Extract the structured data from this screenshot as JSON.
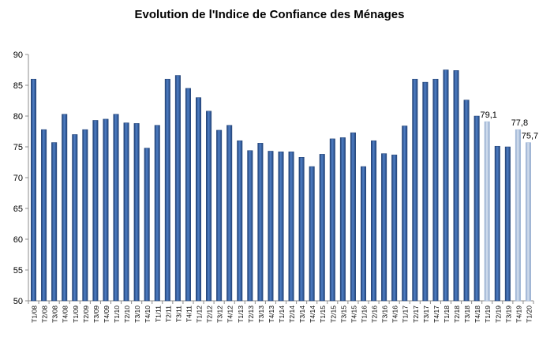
{
  "chart_data": {
    "type": "bar",
    "title": "Evolution de l'Indice de Confiance des Ménages",
    "xlabel": "",
    "ylabel": "",
    "ylim": [
      50,
      90
    ],
    "yticks": [
      50,
      55,
      60,
      65,
      70,
      75,
      80,
      85,
      90
    ],
    "grid": false,
    "legend": "none",
    "colors": {
      "bar": "#3d6bb3",
      "bar_dark": "#1f3f73",
      "bar_light": "#7fa3d8",
      "highlight": "#a9bedc",
      "axis": "#8c8c8c"
    },
    "categories": [
      "T1/08",
      "T2/08",
      "T3/08",
      "T4/08",
      "T1/09",
      "T2/09",
      "T3/09",
      "T4/09",
      "T1/10",
      "T2/10",
      "T3/10",
      "T4/10",
      "T1/11",
      "T2/11",
      "T3/11",
      "T4/11",
      "T1/12",
      "T2/12",
      "T3/12",
      "T4/12",
      "T1/13",
      "T2/13",
      "T3/13",
      "T4/13",
      "T1/14",
      "T2/14",
      "T3/14",
      "T4/14",
      "T1/15",
      "T2/15",
      "T3/15",
      "T4/15",
      "T1/16",
      "T2/16",
      "T3/16",
      "T4/16",
      "T1/17",
      "T2/17",
      "T3/17",
      "T4/17",
      "T1/18",
      "T2/18",
      "T3/18",
      "T4/18",
      "T1/19",
      "T2/19",
      "T3/19",
      "T4/19",
      "T1/20"
    ],
    "values": [
      86,
      77.8,
      75.7,
      80.3,
      77,
      77.8,
      79.3,
      79.5,
      80.3,
      78.9,
      78.8,
      74.8,
      78.5,
      86,
      86.6,
      84.5,
      83,
      80.8,
      77.7,
      78.5,
      76,
      74.4,
      75.6,
      74.3,
      74.2,
      74.2,
      73.3,
      71.8,
      73.8,
      76.3,
      76.5,
      77.3,
      71.8,
      76,
      73.9,
      73.7,
      78.4,
      86,
      85.5,
      86,
      87.5,
      87.4,
      82.6,
      80,
      79.1,
      75.1,
      75,
      77.8,
      75.7
    ],
    "highlighted_indices": [
      44,
      47,
      48
    ],
    "data_labels": [
      {
        "index": 44,
        "text": "79,1"
      },
      {
        "index": 47,
        "text": "77,8"
      },
      {
        "index": 48,
        "text": "75,7"
      }
    ]
  }
}
